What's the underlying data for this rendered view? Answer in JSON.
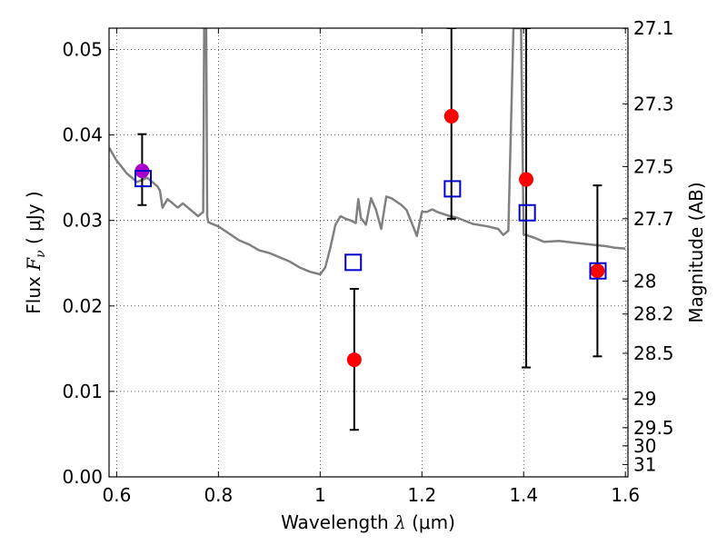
{
  "chart_data": {
    "type": "scatter",
    "xlabel": {
      "prefix": "Wavelength ",
      "symbol": "λ",
      "unit": " (μm)"
    },
    "ylabel": {
      "prefix": "Flux ",
      "symbol": "F",
      "subscript": "ν",
      "unit": " ( μJy )"
    },
    "y2label": "Magnitude (AB)",
    "xlim": [
      0.585,
      1.605
    ],
    "ylim": [
      0.0,
      0.0525
    ],
    "x_ticks": [
      {
        "value": 0.6,
        "label": "0.6"
      },
      {
        "value": 0.8,
        "label": "0.8"
      },
      {
        "value": 1.0,
        "label": "1"
      },
      {
        "value": 1.2,
        "label": "1.2"
      },
      {
        "value": 1.4,
        "label": "1.4"
      },
      {
        "value": 1.6,
        "label": "1.6"
      }
    ],
    "y_ticks": [
      {
        "value": 0.0,
        "label": "0.00"
      },
      {
        "value": 0.01,
        "label": "0.01"
      },
      {
        "value": 0.02,
        "label": "0.02"
      },
      {
        "value": 0.03,
        "label": "0.03"
      },
      {
        "value": 0.04,
        "label": "0.04"
      },
      {
        "value": 0.05,
        "label": "0.05"
      }
    ],
    "y2_ticks": [
      {
        "value": 27.1,
        "label": "27.1"
      },
      {
        "value": 27.3,
        "label": "27.3"
      },
      {
        "value": 27.5,
        "label": "27.5"
      },
      {
        "value": 27.7,
        "label": "27.7"
      },
      {
        "value": 28.0,
        "label": "28"
      },
      {
        "value": 28.2,
        "label": "28.2"
      },
      {
        "value": 28.5,
        "label": "28.5"
      },
      {
        "value": 29.0,
        "label": "29"
      },
      {
        "value": 29.5,
        "label": "29.5"
      },
      {
        "value": 30.0,
        "label": "30"
      },
      {
        "value": 31.0,
        "label": "31"
      }
    ],
    "grid": true,
    "colors": {
      "sed": "#808080",
      "observed": "#ff0000",
      "model": "#0000cc",
      "highlight": "#aa00cc",
      "errorbar": "#000000"
    },
    "sed_line": {
      "x": [
        0.585,
        0.6,
        0.62,
        0.64,
        0.66,
        0.68,
        0.685,
        0.69,
        0.7,
        0.72,
        0.73,
        0.74,
        0.76,
        0.77,
        0.772,
        0.774,
        0.776,
        0.778,
        0.78,
        0.8,
        0.82,
        0.84,
        0.86,
        0.88,
        0.9,
        0.92,
        0.94,
        0.96,
        0.98,
        1.0,
        1.01,
        1.02,
        1.03,
        1.04,
        1.05,
        1.06,
        1.07,
        1.075,
        1.08,
        1.09,
        1.1,
        1.11,
        1.12,
        1.13,
        1.14,
        1.15,
        1.16,
        1.17,
        1.18,
        1.19,
        1.2,
        1.21,
        1.22,
        1.23,
        1.25,
        1.27,
        1.3,
        1.33,
        1.35,
        1.36,
        1.37,
        1.38,
        1.385,
        1.39,
        1.395,
        1.4,
        1.41,
        1.42,
        1.44,
        1.47,
        1.5,
        1.53,
        1.56,
        1.58,
        1.6
      ],
      "y": [
        0.0385,
        0.037,
        0.0355,
        0.0345,
        0.035,
        0.034,
        0.0335,
        0.0315,
        0.0325,
        0.0315,
        0.032,
        0.0315,
        0.0305,
        0.031,
        0.0525,
        0.0525,
        0.0525,
        0.0305,
        0.0298,
        0.0293,
        0.0285,
        0.0277,
        0.0272,
        0.0265,
        0.0262,
        0.0257,
        0.0252,
        0.0245,
        0.024,
        0.0237,
        0.0245,
        0.0268,
        0.0295,
        0.0305,
        0.0302,
        0.03,
        0.0297,
        0.0325,
        0.0303,
        0.0295,
        0.0326,
        0.0312,
        0.029,
        0.0328,
        0.0326,
        0.0322,
        0.0318,
        0.0312,
        0.0297,
        0.0282,
        0.031,
        0.031,
        0.0313,
        0.031,
        0.0306,
        0.0303,
        0.0296,
        0.0293,
        0.029,
        0.0283,
        0.0288,
        0.0525,
        0.0525,
        0.0525,
        0.0525,
        0.0284,
        0.0282,
        0.028,
        0.0275,
        0.0276,
        0.0274,
        0.0272,
        0.027,
        0.0268,
        0.0267
      ]
    },
    "series": [
      {
        "marker": "circle",
        "color": "#ff0000",
        "points": [
          {
            "x": 1.067,
            "y": 0.0137,
            "yerr_low": 0.0055,
            "yerr_high": 0.022
          },
          {
            "x": 1.258,
            "y": 0.0422,
            "yerr_low": 0.0302,
            "yerr_high": 0.0525
          },
          {
            "x": 1.405,
            "y": 0.0348,
            "yerr_low": 0.0128,
            "yerr_high": 0.0525
          },
          {
            "x": 1.545,
            "y": 0.0241,
            "yerr_low": 0.0141,
            "yerr_high": 0.0341
          }
        ]
      },
      {
        "marker": "circle",
        "color": "#aa00cc",
        "points": [
          {
            "x": 0.65,
            "y": 0.0358,
            "yerr_low": 0.0318,
            "yerr_high": 0.0401
          }
        ]
      },
      {
        "marker": "square-open",
        "color": "#0000cc",
        "points": [
          {
            "x": 0.652,
            "y": 0.0349
          },
          {
            "x": 1.065,
            "y": 0.0251
          },
          {
            "x": 1.26,
            "y": 0.0337
          },
          {
            "x": 1.407,
            "y": 0.0309
          },
          {
            "x": 1.546,
            "y": 0.0241
          }
        ]
      }
    ]
  }
}
